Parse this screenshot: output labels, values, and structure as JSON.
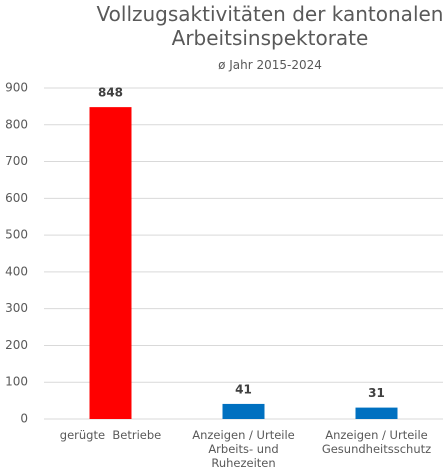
{
  "chart_data": {
    "type": "bar",
    "title": "Vollzugsaktivitäten der kantonalen Arbeitsinspektorate",
    "subtitle": "ø Jahr 2015-2024",
    "categories": [
      "gerügte  Betriebe",
      "Anzeigen / Urteile Arbeits- und Ruhezeiten",
      "Anzeigen / Urteile Gesundheitsschutz"
    ],
    "values": [
      848,
      41,
      31
    ],
    "colors": [
      "#ff0000",
      "#0070c0",
      "#0070c0"
    ],
    "ylim": [
      0,
      900
    ],
    "yticks": [
      0,
      100,
      200,
      300,
      400,
      500,
      600,
      700,
      800,
      900
    ],
    "grid": true
  }
}
